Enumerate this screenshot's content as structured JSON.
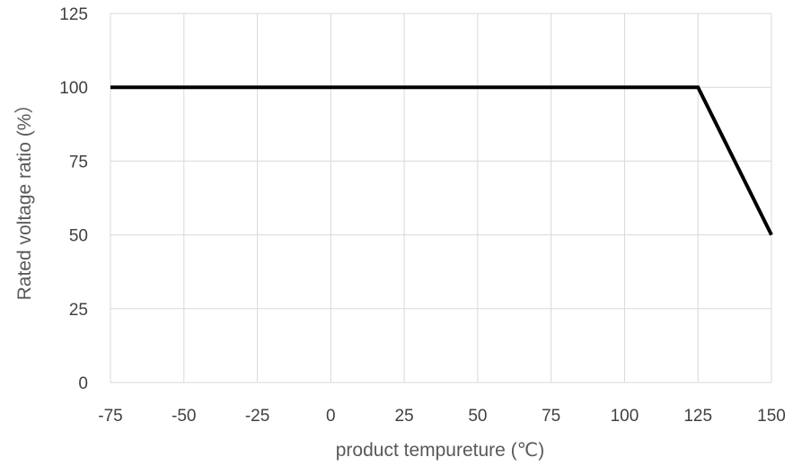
{
  "chart_data": {
    "type": "line",
    "title": "",
    "xlabel": "product tempureture (℃)",
    "ylabel": "Rated voltage ratio (%）",
    "xlim": [
      -75,
      150
    ],
    "ylim": [
      0,
      125
    ],
    "xticks": [
      -75,
      -50,
      -25,
      0,
      25,
      50,
      75,
      100,
      125,
      150
    ],
    "yticks": [
      0,
      25,
      50,
      75,
      100,
      125
    ],
    "grid": true,
    "legend": "none",
    "series": [
      {
        "x": [
          -75,
          125,
          150
        ],
        "y": [
          100,
          100,
          50
        ],
        "color": "#000000"
      }
    ],
    "colors": {
      "grid": "#d9d9d9",
      "axis_text": "#404040",
      "axis_title": "#595959",
      "line": "#000000"
    }
  }
}
